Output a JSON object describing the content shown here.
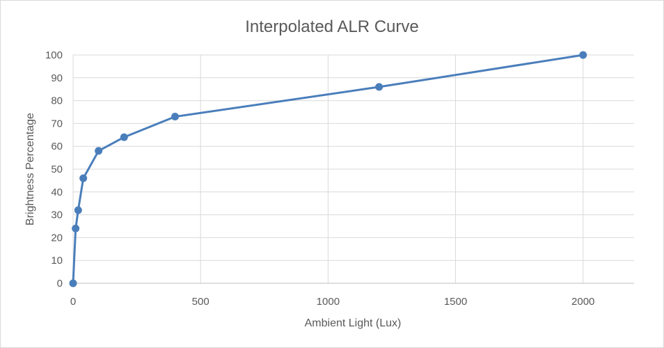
{
  "chart_data": {
    "type": "line",
    "title": "Interpolated ALR Curve",
    "xlabel": "Ambient Light (Lux)",
    "ylabel": "Brightness Percentage",
    "xlim": [
      0,
      2200
    ],
    "ylim": [
      0,
      100
    ],
    "x_ticks": [
      0,
      500,
      1000,
      1500,
      2000
    ],
    "y_ticks": [
      0,
      10,
      20,
      30,
      40,
      50,
      60,
      70,
      80,
      90,
      100
    ],
    "grid": true,
    "legend": "none",
    "series": [
      {
        "color": "#4a7ebb",
        "points": [
          {
            "x": 0,
            "y": 0
          },
          {
            "x": 10,
            "y": 24
          },
          {
            "x": 20,
            "y": 32
          },
          {
            "x": 40,
            "y": 46
          },
          {
            "x": 100,
            "y": 58
          },
          {
            "x": 200,
            "y": 64
          },
          {
            "x": 400,
            "y": 73
          },
          {
            "x": 1200,
            "y": 86
          },
          {
            "x": 2000,
            "y": 100
          }
        ]
      }
    ]
  }
}
